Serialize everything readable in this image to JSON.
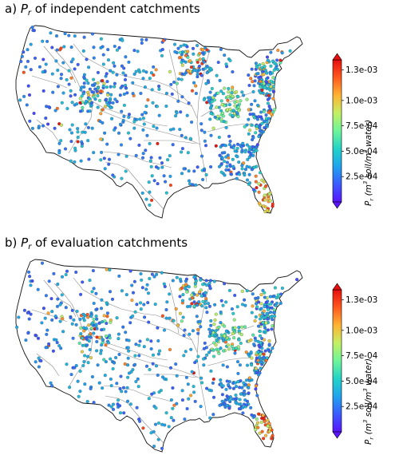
{
  "colors": {
    "ramp": [
      "#5a14ff",
      "#3a5cff",
      "#1fa3ee",
      "#23d3c8",
      "#6ef59a",
      "#c3f064",
      "#ffb433",
      "#ff5a1e",
      "#e60f0f"
    ],
    "river": "#8a8a8a",
    "outline": "#111111"
  },
  "colorbar": {
    "ticks": [
      "1.3e-03",
      "1.0e-03",
      "7.5e-04",
      "5.0e-04",
      "2.5e-04"
    ],
    "tick_values": [
      0.0013,
      0.001,
      0.00075,
      0.0005,
      0.00025
    ],
    "range": [
      0.0,
      0.0014
    ]
  },
  "panels": [
    {
      "letter": "a)",
      "symbol": "P",
      "symbol_sub": "r",
      "rest": " of independent catchments",
      "cbar": {
        "sym": "P",
        "sym_sub": "r",
        "open": " (m",
        "sup1": "3",
        "mid": " soil/m",
        "sup2": "3",
        "close": " water)"
      },
      "seed": 11,
      "count": 940
    },
    {
      "letter": "b)",
      "symbol": "P",
      "symbol_sub": "r",
      "rest": " of evaluation catchments",
      "cbar": {
        "sym": "P",
        "sym_sub": "r",
        "open": " (m",
        "sup1": "3",
        "mid": " soil/m",
        "sup2": "3",
        "close": " water)"
      },
      "seed": 29,
      "count": 900
    }
  ]
}
